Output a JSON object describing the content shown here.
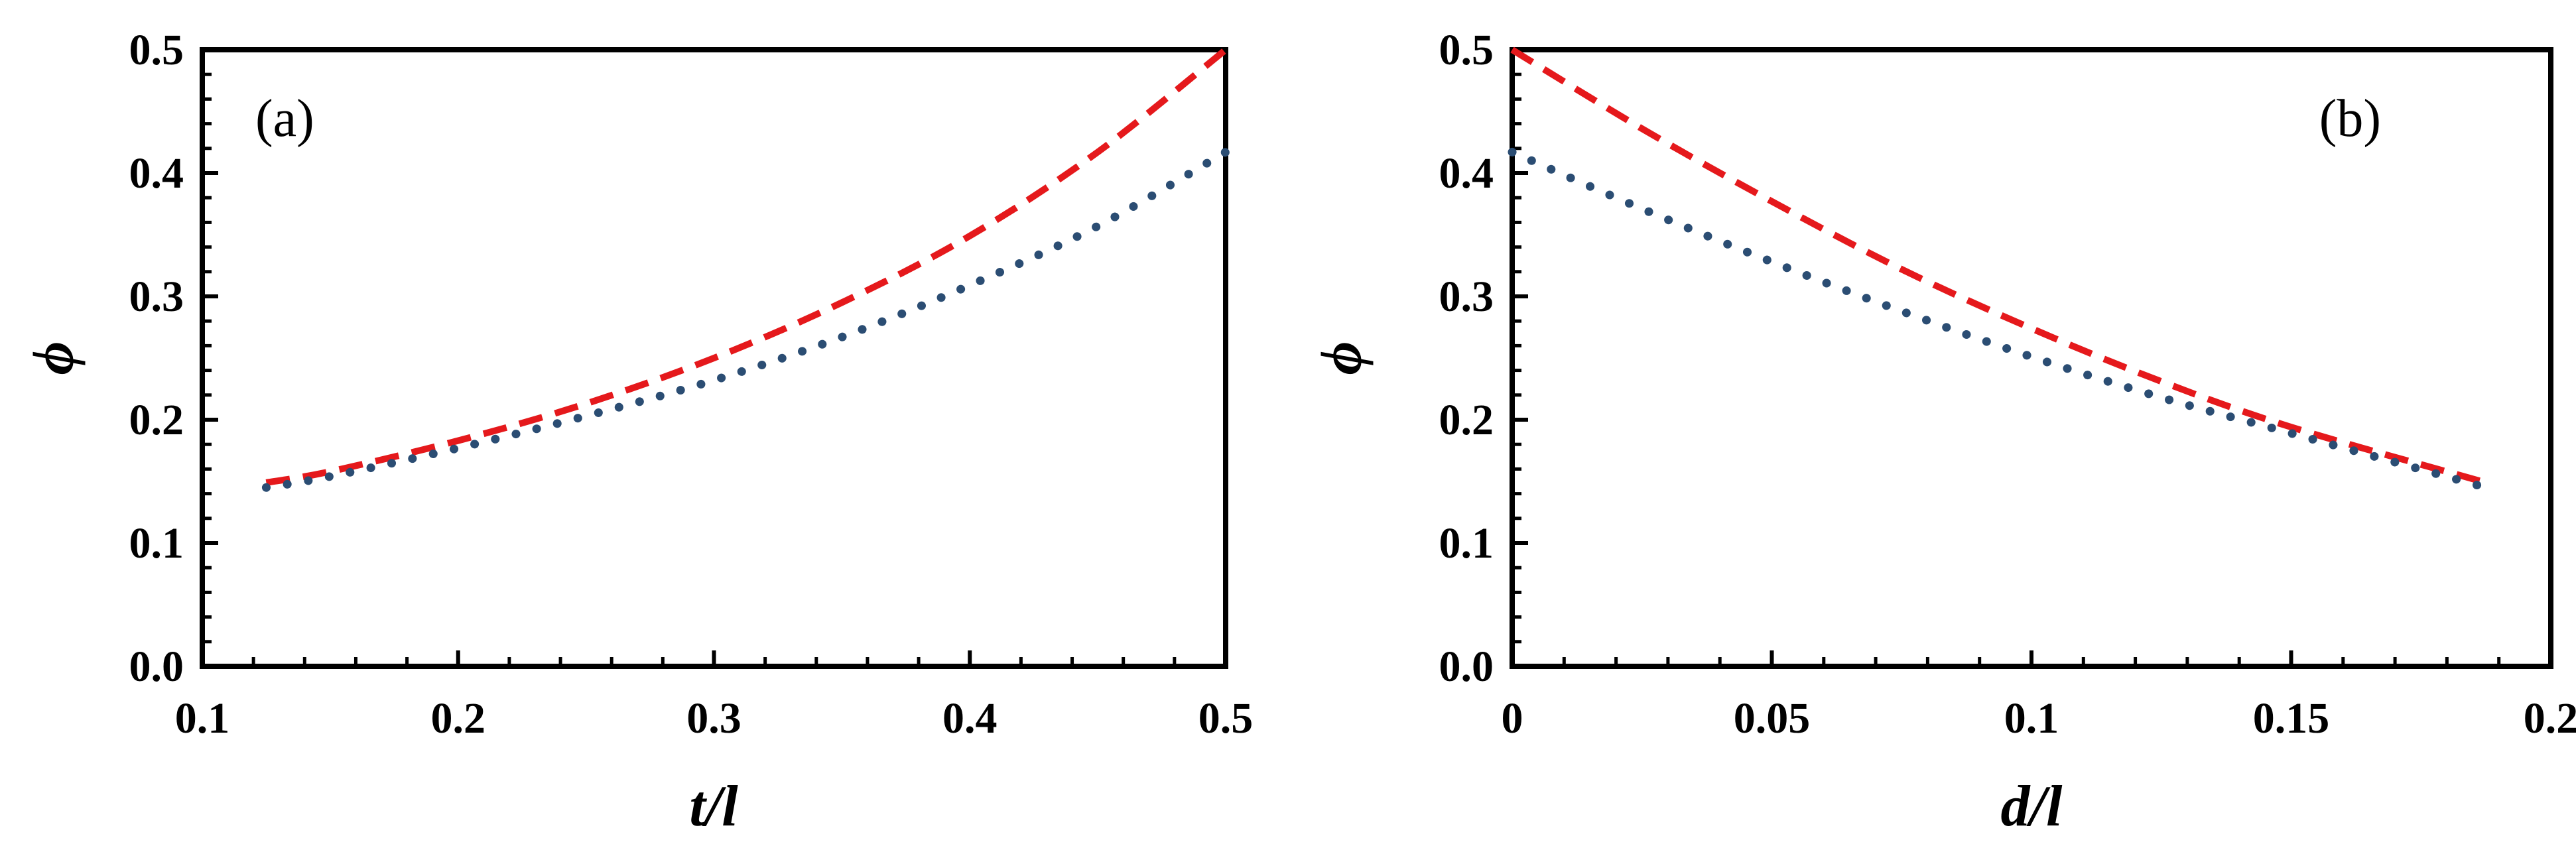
{
  "colors": {
    "dashed": "#e5191c",
    "dotted": "#2b4d73",
    "axes": "#000000"
  },
  "chart_data": [
    {
      "type": "line",
      "panel_label": "(a)",
      "xlabel": "t/l",
      "ylabel": "ϕ",
      "xlim": [
        0.1,
        0.5
      ],
      "ylim": [
        0.0,
        0.5
      ],
      "xticks": [
        "0.1",
        "0.2",
        "0.3",
        "0.4",
        "0.5"
      ],
      "yticks": [
        "0.0",
        "0.1",
        "0.2",
        "0.3",
        "0.4",
        "0.5"
      ],
      "grid": false,
      "series": [
        {
          "style": "dashed",
          "color": "#e5191c",
          "x": [
            0.125,
            0.15,
            0.2,
            0.25,
            0.3,
            0.35,
            0.4,
            0.45,
            0.5
          ],
          "y": [
            0.149,
            0.158,
            0.183,
            0.213,
            0.25,
            0.295,
            0.349,
            0.417,
            0.5
          ]
        },
        {
          "style": "dotted",
          "color": "#2b4d73",
          "x": [
            0.125,
            0.15,
            0.2,
            0.25,
            0.3,
            0.35,
            0.4,
            0.45,
            0.5
          ],
          "y": [
            0.145,
            0.154,
            0.177,
            0.203,
            0.232,
            0.267,
            0.309,
            0.357,
            0.417
          ]
        }
      ]
    },
    {
      "type": "line",
      "panel_label": "(b)",
      "xlabel": "d/l",
      "ylabel": "ϕ",
      "xlim": [
        0,
        0.2
      ],
      "ylim": [
        0.0,
        0.5
      ],
      "xticks": [
        "0",
        "0.05",
        "0.1",
        "0.15",
        "0.2"
      ],
      "yticks": [
        "0.0",
        "0.1",
        "0.2",
        "0.3",
        "0.4",
        "0.5"
      ],
      "grid": false,
      "series": [
        {
          "style": "dashed",
          "color": "#e5191c",
          "x": [
            0,
            0.025,
            0.05,
            0.075,
            0.1,
            0.125,
            0.15,
            0.1875
          ],
          "y": [
            0.5,
            0.436,
            0.377,
            0.322,
            0.274,
            0.231,
            0.194,
            0.149
          ]
        },
        {
          "style": "dotted",
          "color": "#2b4d73",
          "x": [
            0,
            0.025,
            0.05,
            0.075,
            0.1,
            0.125,
            0.15,
            0.1875
          ],
          "y": [
            0.417,
            0.371,
            0.328,
            0.288,
            0.251,
            0.218,
            0.189,
            0.145
          ]
        }
      ]
    }
  ]
}
